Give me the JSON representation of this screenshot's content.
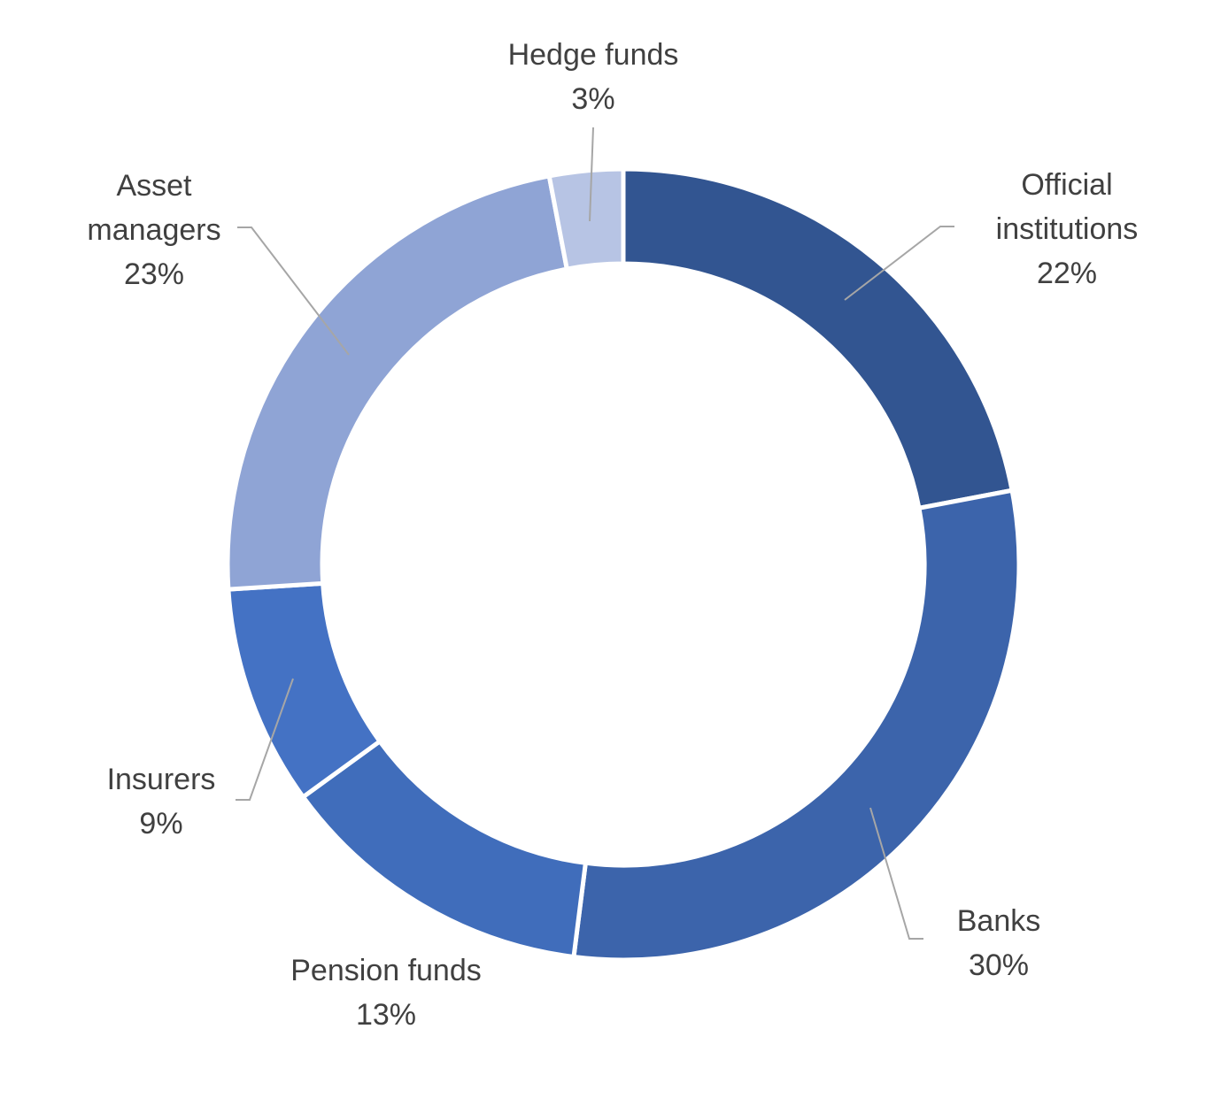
{
  "chart_data": {
    "type": "pie",
    "variant": "donut",
    "legend": "none",
    "slices": [
      {
        "key": "official",
        "label_lines": [
          "Official",
          "institutions"
        ],
        "value": 22,
        "value_label": "22%",
        "color": "#325591"
      },
      {
        "key": "banks",
        "label_lines": [
          "Banks"
        ],
        "value": 30,
        "value_label": "30%",
        "color": "#3c64ab"
      },
      {
        "key": "pension",
        "label_lines": [
          "Pension funds"
        ],
        "value": 13,
        "value_label": "13%",
        "color": "#406dbb"
      },
      {
        "key": "insurers",
        "label_lines": [
          "Insurers"
        ],
        "value": 9,
        "value_label": "9%",
        "color": "#4472c4"
      },
      {
        "key": "asset",
        "label_lines": [
          "Asset",
          "managers"
        ],
        "value": 23,
        "value_label": "23%",
        "color": "#8fa4d5"
      },
      {
        "key": "hedge",
        "label_lines": [
          "Hedge funds"
        ],
        "value": 3,
        "value_label": "3%",
        "color": "#b7c4e4"
      }
    ]
  }
}
